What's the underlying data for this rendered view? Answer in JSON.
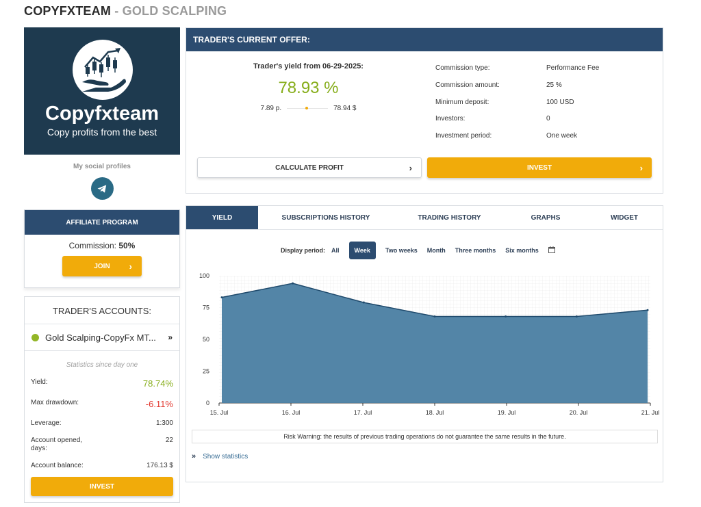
{
  "header": {
    "trader": "COPYFXTEAM",
    "separator": "-",
    "strategy": "GOLD SCALPING"
  },
  "logo": {
    "name": "Copyfxteam",
    "slogan": "Copy profits from the best"
  },
  "social": {
    "title": "My social profiles",
    "icon": "telegram-icon"
  },
  "affiliate": {
    "title": "AFFILIATE PROGRAM",
    "commission_label": "Commission:",
    "commission_value": "50%",
    "join_label": "JOIN"
  },
  "accounts": {
    "title": "TRADER'S ACCOUNTS:",
    "account_name": "Gold Scalping-CopyFx MT...",
    "stats_caption": "Statistics since day one",
    "stats": [
      {
        "label": "Yield:",
        "value": "78.74%"
      },
      {
        "label": "Max drawdown:",
        "value": "-6.11%"
      },
      {
        "label": "Leverage:",
        "value": "1:300"
      },
      {
        "label": "Account opened, days:",
        "value": "22"
      },
      {
        "label": "Account balance:",
        "value": "176.13 $"
      }
    ],
    "invest_label": "INVEST"
  },
  "offer": {
    "title": "TRADER'S CURRENT OFFER:",
    "yield_label": "Trader's yield from 06-29-2025:",
    "yield_value": "78.93 %",
    "yield_points": "7.89 p.",
    "yield_money": "78.94 $",
    "terms": [
      {
        "k": "Commission type:",
        "v": "Performance Fee"
      },
      {
        "k": "Commission amount:",
        "v": "25 %"
      },
      {
        "k": "Minimum deposit:",
        "v": "100 USD"
      },
      {
        "k": "Investors:",
        "v": "0"
      },
      {
        "k": "Investment period:",
        "v": "One week"
      }
    ],
    "calc_label": "CALCULATE PROFIT",
    "invest_label": "INVEST"
  },
  "tabs": [
    "YIELD",
    "SUBSCRIPTIONS HISTORY",
    "TRADING HISTORY",
    "GRAPHS",
    "WIDGET"
  ],
  "periods": {
    "label": "Display period:",
    "options": [
      "All",
      "Week",
      "Two weeks",
      "Month",
      "Three months",
      "Six months"
    ],
    "selected": "Week",
    "calendar_icon": "calendar-icon"
  },
  "colors": {
    "accent": "#f1ab0a",
    "header_blue": "#2c4c70",
    "positive": "#86ad1a",
    "negative": "#e2372e",
    "area_fill": "#4a7ea2",
    "area_stroke": "#1f4a6c"
  },
  "chart_data": {
    "type": "area",
    "x": [
      "15. Jul",
      "16. Jul",
      "17. Jul",
      "18. Jul",
      "19. Jul",
      "20. Jul",
      "21. Jul"
    ],
    "points": [
      {
        "t": 0.0,
        "y": 83
      },
      {
        "t": 1.0,
        "y": 94
      },
      {
        "t": 2.0,
        "y": 79
      },
      {
        "t": 3.0,
        "y": 68
      },
      {
        "t": 4.0,
        "y": 68
      },
      {
        "t": 5.0,
        "y": 68
      },
      {
        "t": 6.0,
        "y": 73
      }
    ],
    "yticks": [
      0,
      25,
      50,
      75,
      100
    ],
    "ylim": [
      0,
      100
    ],
    "grid": true,
    "title": "",
    "xlabel": "",
    "ylabel": ""
  },
  "risk_warning": "Risk Warning: the results of previous trading operations do not guarantee the same results in the future.",
  "show_stats_label": "Show statistics"
}
